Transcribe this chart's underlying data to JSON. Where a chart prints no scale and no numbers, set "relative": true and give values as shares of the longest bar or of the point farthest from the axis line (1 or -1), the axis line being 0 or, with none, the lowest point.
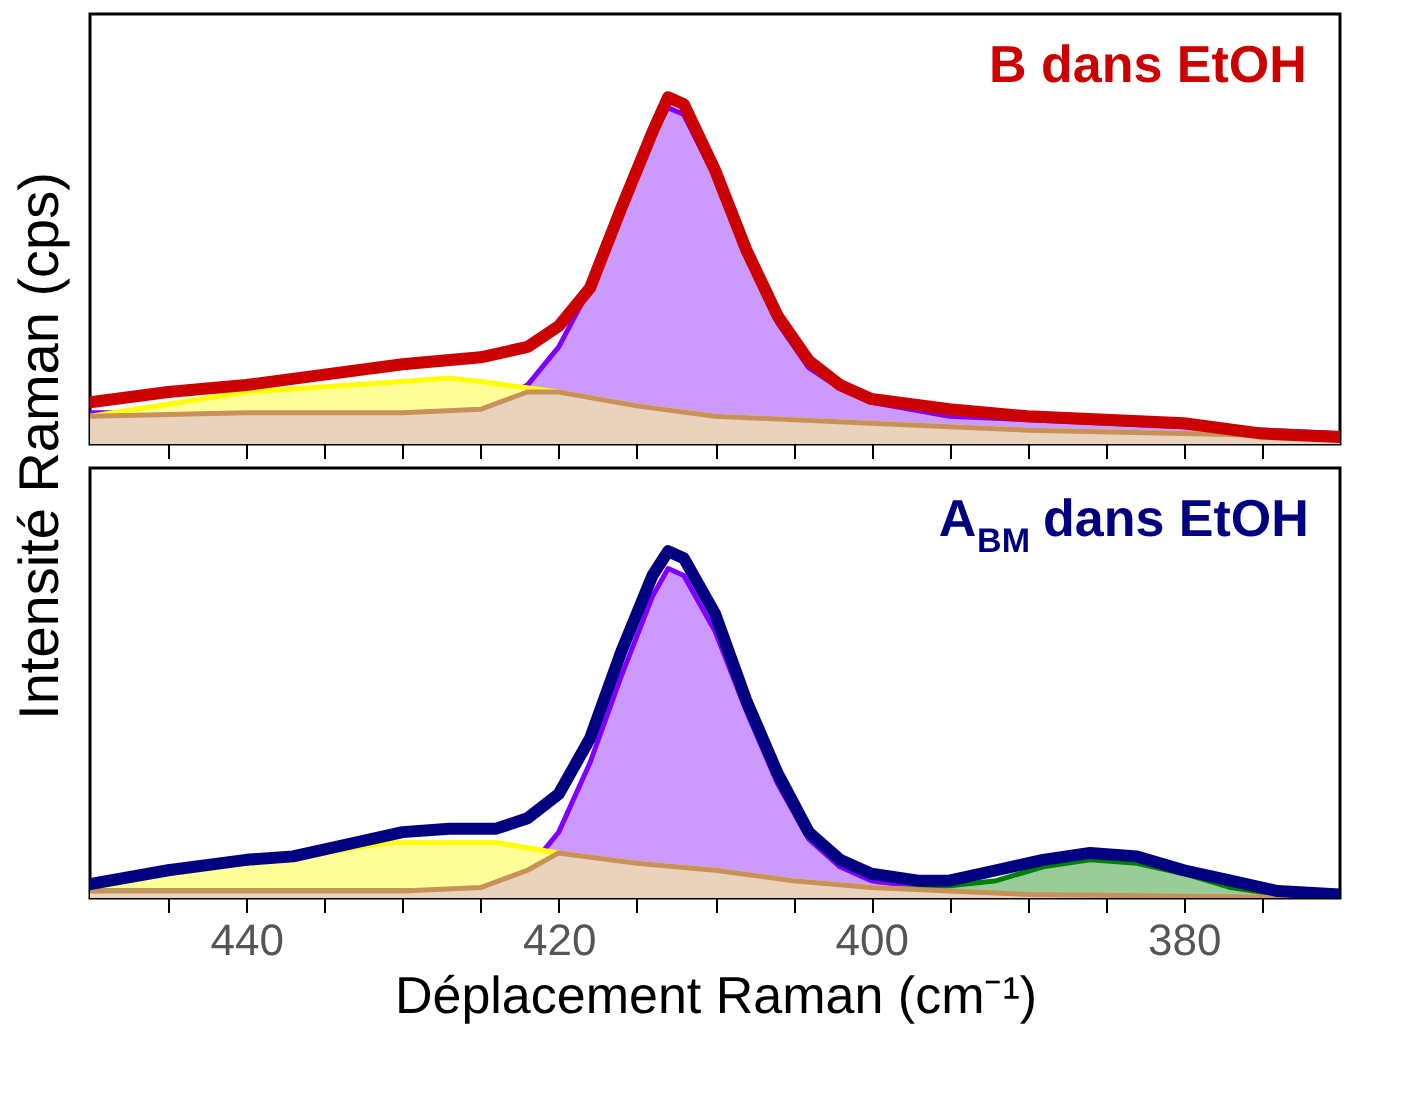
{
  "chart_data": [
    {
      "type": "line",
      "relative": true,
      "ylabel": "Intensité Raman (cps)",
      "annotations": [
        "B dans EtOH"
      ],
      "xlim": [
        450,
        370
      ],
      "xticks": [
        {
          "value": 445,
          "label": null
        },
        {
          "value": 440,
          "label": null
        },
        {
          "value": 435,
          "label": null
        },
        {
          "value": 430,
          "label": null
        },
        {
          "value": 425,
          "label": null
        },
        {
          "value": 420,
          "label": null
        },
        {
          "value": 415,
          "label": null
        },
        {
          "value": 410,
          "label": null
        },
        {
          "value": 405,
          "label": null
        },
        {
          "value": 400,
          "label": null
        },
        {
          "value": 395,
          "label": null
        },
        {
          "value": 390,
          "label": null
        },
        {
          "value": 385,
          "label": null
        },
        {
          "value": 380,
          "label": null
        },
        {
          "value": 375,
          "label": null
        }
      ],
      "tick_labels": false,
      "grid": false,
      "series": [
        {
          "type": "area",
          "color": "#8000ff",
          "x": [
            450,
            440,
            430,
            425,
            422,
            420,
            418,
            416,
            414,
            413,
            412,
            410,
            408,
            406,
            404,
            402,
            400,
            395,
            390,
            380,
            370
          ],
          "values": [
            0.09,
            0.09,
            0.09,
            0.1,
            0.17,
            0.28,
            0.45,
            0.66,
            0.89,
            0.97,
            0.95,
            0.77,
            0.55,
            0.35,
            0.22,
            0.16,
            0.12,
            0.08,
            0.07,
            0.05,
            0.03
          ]
        },
        {
          "type": "area",
          "color": "#ffff00",
          "x": [
            450,
            440,
            430,
            427,
            425,
            420,
            415,
            410,
            400,
            390,
            380,
            370
          ],
          "values": [
            0.08,
            0.15,
            0.18,
            0.19,
            0.18,
            0.15,
            0.11,
            0.08,
            0.06,
            0.04,
            0.03,
            0.02
          ]
        },
        {
          "type": "area",
          "color": "#c8915a",
          "x": [
            450,
            440,
            430,
            425,
            422,
            420,
            415,
            410,
            400,
            390,
            380,
            370
          ],
          "values": [
            0.08,
            0.09,
            0.09,
            0.1,
            0.15,
            0.15,
            0.11,
            0.08,
            0.06,
            0.04,
            0.03,
            0.02
          ]
        },
        {
          "color": "#cc0000",
          "x": [
            450,
            445,
            440,
            435,
            430,
            425,
            422,
            420,
            418,
            416,
            414,
            413,
            412,
            410,
            408,
            406,
            404,
            402,
            400,
            395,
            390,
            385,
            380,
            375,
            370
          ],
          "values": [
            0.12,
            0.15,
            0.17,
            0.2,
            0.23,
            0.25,
            0.28,
            0.34,
            0.45,
            0.68,
            0.9,
            1,
            0.98,
            0.79,
            0.56,
            0.37,
            0.24,
            0.17,
            0.13,
            0.1,
            0.08,
            0.07,
            0.06,
            0.03,
            0.02
          ]
        }
      ]
    },
    {
      "type": "line",
      "relative": true,
      "xlabel": "Déplacement Raman (cm⁻¹)",
      "annotations": [
        "A$_{BM}$ dans EtOH"
      ],
      "xlim": [
        450,
        370
      ],
      "xticks": [
        {
          "value": 445,
          "label": null
        },
        440,
        {
          "value": 435,
          "label": null
        },
        {
          "value": 430,
          "label": null
        },
        {
          "value": 425,
          "label": null
        },
        420,
        {
          "value": 415,
          "label": null
        },
        {
          "value": 410,
          "label": null
        },
        {
          "value": 405,
          "label": null
        },
        400,
        {
          "value": 395,
          "label": null
        },
        {
          "value": 390,
          "label": null
        },
        {
          "value": 385,
          "label": null
        },
        380,
        {
          "value": 375,
          "label": null
        }
      ],
      "tick_labels": "x",
      "grid": false,
      "series": [
        {
          "type": "area",
          "color": "#8000ff",
          "x": [
            450,
            430,
            425,
            422,
            420,
            418,
            416,
            414,
            413,
            412,
            410,
            408,
            406,
            404,
            402,
            400,
            397,
            390,
            370
          ],
          "values": [
            0.02,
            0.02,
            0.03,
            0.08,
            0.19,
            0.39,
            0.64,
            0.87,
            0.95,
            0.93,
            0.77,
            0.54,
            0.33,
            0.17,
            0.09,
            0.05,
            0.03,
            0.02,
            0.01
          ]
        },
        {
          "type": "area",
          "color": "#ffff00",
          "x": [
            450,
            445,
            440,
            435,
            431,
            427,
            424,
            420,
            415,
            410,
            405,
            400,
            395,
            390,
            380,
            370
          ],
          "values": [
            0.03,
            0.07,
            0.1,
            0.13,
            0.16,
            0.16,
            0.16,
            0.13,
            0.1,
            0.08,
            0.05,
            0.03,
            0.02,
            0.01,
            0.01,
            0
          ]
        },
        {
          "type": "area",
          "color": "#008000",
          "x": [
            450,
            400,
            396,
            392,
            389,
            386,
            383,
            380,
            377,
            374,
            370
          ],
          "values": [
            0.02,
            0.02,
            0.03,
            0.05,
            0.09,
            0.11,
            0.1,
            0.07,
            0.03,
            0.01,
            0.01
          ]
        },
        {
          "type": "area",
          "color": "#c8915a",
          "x": [
            450,
            430,
            425,
            422,
            420,
            415,
            410,
            405,
            400,
            395,
            390,
            370
          ],
          "values": [
            0.02,
            0.02,
            0.03,
            0.08,
            0.13,
            0.1,
            0.08,
            0.05,
            0.03,
            0.02,
            0.01,
            0
          ]
        },
        {
          "color": "#000080",
          "x": [
            450,
            445,
            440,
            437,
            433,
            430,
            427,
            424,
            422,
            420,
            418,
            416,
            414,
            413,
            412,
            410,
            408,
            406,
            404,
            402,
            400,
            397,
            395,
            392,
            389,
            386,
            383,
            380,
            377,
            374,
            370
          ],
          "values": [
            0.04,
            0.08,
            0.11,
            0.12,
            0.16,
            0.19,
            0.2,
            0.2,
            0.23,
            0.3,
            0.46,
            0.71,
            0.93,
            1,
            0.98,
            0.82,
            0.57,
            0.36,
            0.19,
            0.11,
            0.07,
            0.05,
            0.05,
            0.08,
            0.11,
            0.13,
            0.12,
            0.08,
            0.05,
            0.02,
            0.01
          ]
        }
      ]
    }
  ]
}
